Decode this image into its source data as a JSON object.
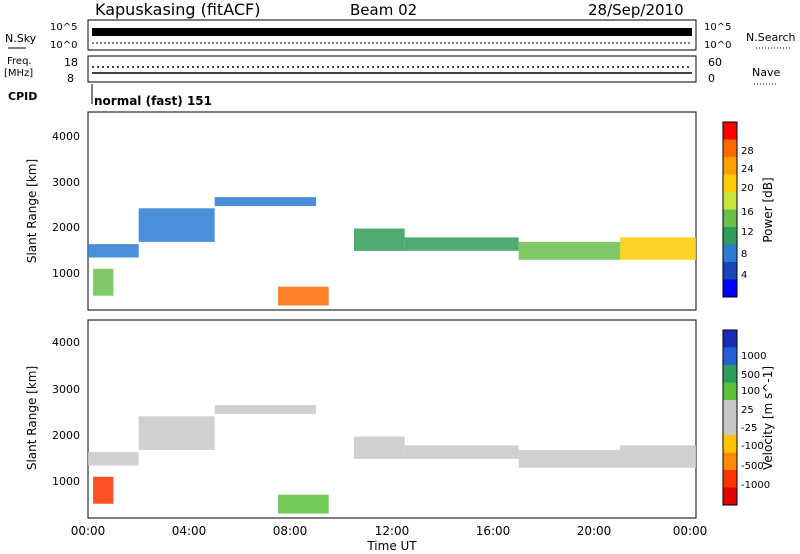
{
  "header": {
    "station": "Kapuskasing (fitACF)",
    "beam": "Beam 02",
    "date": "28/Sep/2010"
  },
  "sky_panel": {
    "label": "N.Sky",
    "right_label": "N.Search",
    "left_ticks": [
      "10^5",
      "10^0"
    ],
    "right_ticks": [
      "10^5",
      "10^0"
    ]
  },
  "freq_panel": {
    "label_line1": "Freq.",
    "label_line2": "[MHz]",
    "left_ticks": [
      "18",
      "8"
    ],
    "right_ticks": [
      "60",
      "0"
    ],
    "right_label": "Nave"
  },
  "cpid": {
    "label": "CPID",
    "value": "normal (fast) 151"
  },
  "x_axis": {
    "label": "Time UT",
    "ticks": [
      "00:00",
      "04:00",
      "08:00",
      "12:00",
      "16:00",
      "20:00",
      "00:00"
    ]
  },
  "power_panel": {
    "ylabel": "Slant Range [km]",
    "yticks": [
      "4000",
      "3000",
      "2000",
      "1000"
    ],
    "colorbar_label": "Power [dB]",
    "colorbar_ticks": [
      "28",
      "24",
      "20",
      "16",
      "12",
      "8",
      "4"
    ],
    "colorbar_colors": [
      "#ff0000",
      "#ff6a00",
      "#ff9f00",
      "#ffcc00",
      "#c8e63c",
      "#6abf4b",
      "#2f9e5b",
      "#2a7bd1",
      "#1846b8",
      "#0000ff"
    ]
  },
  "velocity_panel": {
    "ylabel": "Slant Range [km]",
    "yticks": [
      "4000",
      "3000",
      "2000",
      "1000"
    ],
    "colorbar_label": "Velocity [m s^-1]",
    "colorbar_ticks": [
      "1000",
      "500",
      "100",
      "25",
      "-25",
      "-100",
      "-500",
      "-1000"
    ],
    "colorbar_colors": [
      "#1a2db8",
      "#2660d6",
      "#2f9e5b",
      "#5cc23a",
      "#c8c8c8",
      "#c8c8c8",
      "#ffc300",
      "#ff8a00",
      "#ff3300",
      "#e00000"
    ]
  },
  "chart_data": {
    "type": "heatmap",
    "x_range_hours": [
      0,
      24
    ],
    "y_range_km": [
      180,
      4600
    ],
    "bands": [
      {
        "t0": 0.0,
        "t1": 2.0,
        "r0": 1350,
        "r1": 1650,
        "power": 8,
        "vel": 10
      },
      {
        "t0": 2.0,
        "t1": 5.0,
        "r0": 1700,
        "r1": 2450,
        "power": 8,
        "vel": 10
      },
      {
        "t0": 5.0,
        "t1": 9.0,
        "r0": 2500,
        "r1": 2700,
        "power": 8,
        "vel": 10
      },
      {
        "t0": 10.5,
        "t1": 12.5,
        "r0": 1500,
        "r1": 2000,
        "power": 12,
        "vel": 20
      },
      {
        "t0": 12.5,
        "t1": 17.0,
        "r0": 1500,
        "r1": 1800,
        "power": 12,
        "vel": 10
      },
      {
        "t0": 17.0,
        "t1": 21.0,
        "r0": 1300,
        "r1": 1700,
        "power": 16,
        "vel": 10
      },
      {
        "t0": 21.0,
        "t1": 24.0,
        "r0": 1300,
        "r1": 1800,
        "power": 20,
        "vel": 10
      },
      {
        "t0": 0.2,
        "t1": 1.0,
        "r0": 500,
        "r1": 1100,
        "power": 16,
        "vel": -500
      },
      {
        "t0": 7.5,
        "t1": 9.5,
        "r0": 280,
        "r1": 700,
        "power": 28,
        "vel": 100
      }
    ]
  }
}
